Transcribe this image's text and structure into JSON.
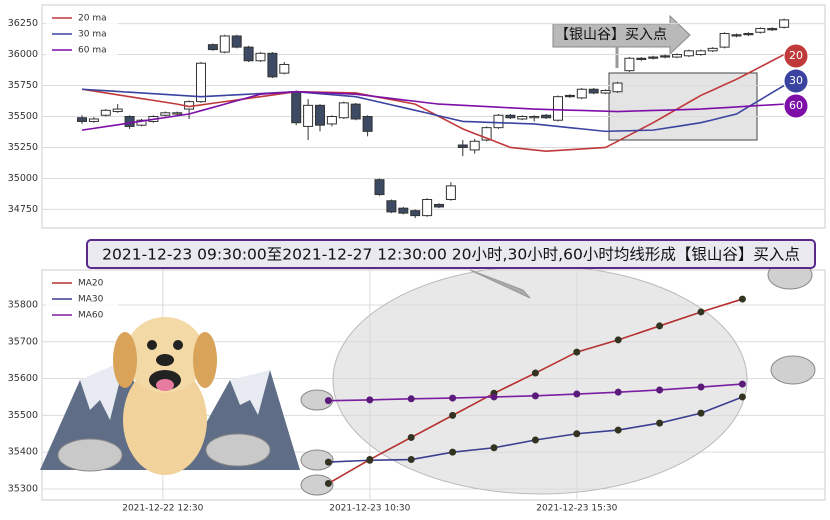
{
  "chart_data": [
    {
      "type": "candlestick",
      "open": [
        35490,
        35460,
        35510,
        35540,
        35500,
        35430,
        35460,
        35510,
        35520,
        35560,
        35620,
        36080,
        36020,
        36150,
        36060,
        35950,
        36010,
        35850,
        35700,
        35420,
        35590,
        35440,
        35490,
        35600,
        35500,
        34990,
        34820,
        34760,
        34740,
        34700,
        34790,
        34830,
        35270,
        35230,
        35310,
        35410,
        35510,
        35480,
        35490,
        35510,
        35470,
        35670,
        35650,
        35720,
        35690,
        35700,
        35870,
        35970,
        35980,
        35990,
        35980,
        35990,
        36000,
        36030,
        36060,
        36160,
        36170,
        36180,
        36210,
        36220
      ],
      "high": [
        35510,
        35495,
        35560,
        35600,
        35510,
        35480,
        35510,
        35540,
        35540,
        35630,
        35940,
        36090,
        36160,
        36160,
        36070,
        36020,
        36020,
        35940,
        35710,
        35640,
        35600,
        35510,
        35620,
        35610,
        35510,
        35000,
        34830,
        34770,
        34750,
        34840,
        34800,
        34970,
        35310,
        35320,
        35420,
        35520,
        35520,
        35510,
        35510,
        35520,
        35670,
        35680,
        35730,
        35730,
        35720,
        35780,
        35980,
        35980,
        35990,
        36000,
        36010,
        36040,
        36040,
        36060,
        36180,
        36170,
        36180,
        36220,
        36220,
        36290
      ],
      "low": [
        35440,
        35450,
        35500,
        35530,
        35400,
        35420,
        35450,
        35500,
        35510,
        35480,
        35610,
        36030,
        36010,
        36050,
        35940,
        35940,
        35810,
        35840,
        35430,
        35310,
        35380,
        35420,
        35480,
        35470,
        35340,
        34860,
        34720,
        34710,
        34680,
        34690,
        34760,
        34820,
        35180,
        35200,
        35300,
        35400,
        35480,
        35470,
        35460,
        35480,
        35460,
        35650,
        35640,
        35680,
        35680,
        35690,
        35860,
        35950,
        35960,
        35970,
        35970,
        35980,
        35990,
        36020,
        36050,
        36140,
        36150,
        36170,
        36190,
        36210
      ],
      "close": [
        35460,
        35480,
        35550,
        35560,
        35420,
        35470,
        35500,
        35530,
        35530,
        35620,
        35930,
        36040,
        36150,
        36060,
        35950,
        36010,
        35820,
        35920,
        35450,
        35590,
        35430,
        35500,
        35610,
        35480,
        35380,
        34870,
        34730,
        34720,
        34700,
        34830,
        34770,
        34940,
        35250,
        35300,
        35410,
        35510,
        35490,
        35500,
        35500,
        35490,
        35660,
        35660,
        35720,
        35690,
        35710,
        35770,
        35970,
        35960,
        35970,
        35980,
        36000,
        36030,
        36030,
        36050,
        36170,
        36150,
        36160,
        36210,
        36200,
        36280
      ],
      "up_color": "#ffffff",
      "down_color": "#3d4a63",
      "series": [
        {
          "name": "20 ma",
          "color": "#c0393b",
          "end_label": "20",
          "values": [
            35720,
            35705,
            35690,
            35675,
            35660,
            35645,
            35630,
            35615,
            35600,
            35580,
            35593,
            35607,
            35620,
            35633,
            35647,
            35660,
            35673,
            35687,
            35700,
            35698,
            35696,
            35694,
            35692,
            35690,
            35672,
            35654,
            35636,
            35618,
            35600,
            35550,
            35500,
            35450,
            35400,
            35362,
            35325,
            35288,
            35250,
            35240,
            35230,
            35220,
            35226,
            35232,
            35238,
            35244,
            35250,
            35300,
            35350,
            35400,
            35450,
            35505,
            35560,
            35615,
            35670,
            35713,
            35757,
            35800,
            35850,
            35900,
            35950,
            36000
          ]
        },
        {
          "name": "30 ma",
          "color": "#3b43a0",
          "end_label": "30",
          "values": [
            35720,
            35714,
            35708,
            35702,
            35696,
            35690,
            35684,
            35678,
            35672,
            35666,
            35660,
            35665,
            35670,
            35675,
            35680,
            35685,
            35690,
            35695,
            35700,
            35692,
            35684,
            35676,
            35668,
            35660,
            35638,
            35616,
            35594,
            35572,
            35550,
            35528,
            35505,
            35483,
            35460,
            35457,
            35453,
            35450,
            35447,
            35443,
            35440,
            35430,
            35420,
            35410,
            35400,
            35390,
            35380,
            35383,
            35385,
            35388,
            35390,
            35405,
            35420,
            35435,
            35450,
            35473,
            35497,
            35520,
            35578,
            35635,
            35693,
            35750
          ]
        },
        {
          "name": "60 ma",
          "color": "#7d0fa8",
          "end_label": "60",
          "values": [
            35390,
            35404,
            35419,
            35433,
            35448,
            35462,
            35477,
            35491,
            35506,
            35520,
            35547,
            35573,
            35600,
            35627,
            35653,
            35680,
            35687,
            35693,
            35700,
            35696,
            35692,
            35688,
            35684,
            35680,
            35669,
            35657,
            35646,
            35634,
            35623,
            35611,
            35600,
            35595,
            35590,
            35585,
            35580,
            35575,
            35570,
            35565,
            35560,
            35557,
            35554,
            35551,
            35549,
            35546,
            35543,
            35540,
            35543,
            35546,
            35549,
            35551,
            35554,
            35557,
            35560,
            35566,
            35571,
            35577,
            35583,
            35589,
            35594,
            35600
          ]
        }
      ],
      "ylim": [
        34600,
        36400
      ],
      "yticks": [
        34750,
        35000,
        35250,
        35500,
        35750,
        36000,
        36250
      ],
      "grid": true,
      "legend": "upper left",
      "annotation": "【银山谷】买入点"
    },
    {
      "type": "line",
      "title": "2021-12-23 09:30:00至2021-12-27 12:30:00 20小时,30小时,60小时均线形成【银山谷】买入点",
      "categories": [
        null,
        null,
        "2021-12-22 12:30",
        null,
        null,
        null,
        null,
        "2021-12-23 10:30",
        null,
        null,
        null,
        null,
        "2021-12-23 15:30",
        null,
        null,
        null,
        null
      ],
      "series": [
        {
          "name": "MA20",
          "color": "#b5302f",
          "values": [
            null,
            null,
            null,
            null,
            null,
            null,
            35315,
            35380,
            35440,
            35500,
            35560,
            35615,
            35672,
            35705,
            35743,
            35781,
            35816
          ]
        },
        {
          "name": "MA30",
          "color": "#3a3f8f",
          "values": [
            null,
            null,
            null,
            null,
            null,
            null,
            35373,
            35378,
            35380,
            35400,
            35412,
            35433,
            35450,
            35460,
            35479,
            35506,
            35550
          ]
        },
        {
          "name": "MA60",
          "color": "#7a1fa0",
          "values": [
            null,
            null,
            null,
            null,
            null,
            null,
            35540,
            35542,
            35545,
            35547,
            35550,
            35553,
            35558,
            35563,
            35569,
            35577,
            35585
          ]
        }
      ],
      "ylim": [
        35270,
        35895
      ],
      "yticks": [
        35300,
        35400,
        35500,
        35600,
        35700,
        35800
      ],
      "grid": true,
      "legend": "upper left"
    }
  ]
}
